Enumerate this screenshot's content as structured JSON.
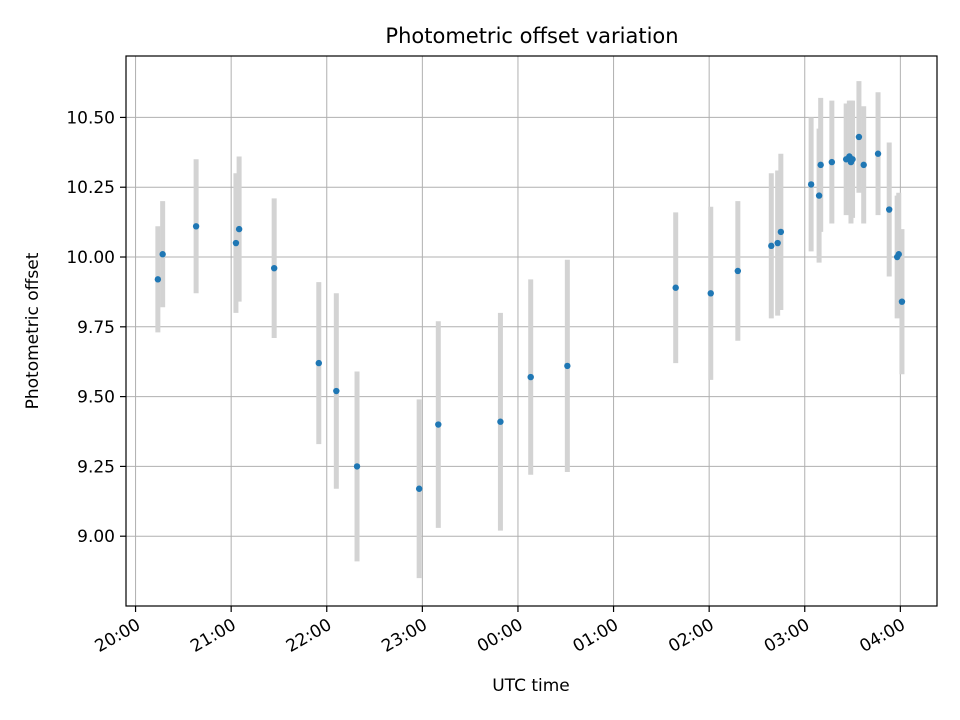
{
  "chart_data": {
    "type": "scatter",
    "title": "Photometric offset variation",
    "xlabel": "UTC time",
    "ylabel": "Photometric offset",
    "x_ticks": [
      "20:00",
      "21:00",
      "22:00",
      "23:00",
      "00:00",
      "01:00",
      "02:00",
      "03:00",
      "04:00"
    ],
    "y_ticks": [
      "9.00",
      "9.25",
      "9.50",
      "9.75",
      "10.00",
      "10.25",
      "10.50"
    ],
    "xlim": [
      "19:54",
      "04:23"
    ],
    "ylim": [
      8.75,
      10.72
    ],
    "grid": true,
    "colors": {
      "marker": "#1f77b4",
      "errorbar": "#d3d3d3",
      "grid": "#b0b0b0",
      "axis": "#000000"
    },
    "points": [
      {
        "x": "20:14",
        "y": 9.92,
        "err": 0.19
      },
      {
        "x": "20:17",
        "y": 10.01,
        "err": 0.19
      },
      {
        "x": "20:38",
        "y": 10.11,
        "err": 0.24
      },
      {
        "x": "21:03",
        "y": 10.05,
        "err": 0.25
      },
      {
        "x": "21:05",
        "y": 10.1,
        "err": 0.26
      },
      {
        "x": "21:27",
        "y": 9.96,
        "err": 0.25
      },
      {
        "x": "21:55",
        "y": 9.62,
        "err": 0.29
      },
      {
        "x": "22:06",
        "y": 9.52,
        "err": 0.35
      },
      {
        "x": "22:19",
        "y": 9.25,
        "err": 0.34
      },
      {
        "x": "22:58",
        "y": 9.17,
        "err": 0.32
      },
      {
        "x": "23:10",
        "y": 9.4,
        "err": 0.37
      },
      {
        "x": "23:49",
        "y": 9.41,
        "err": 0.39
      },
      {
        "x": "00:08",
        "y": 9.57,
        "err": 0.35
      },
      {
        "x": "00:31",
        "y": 9.61,
        "err": 0.38
      },
      {
        "x": "01:39",
        "y": 9.89,
        "err": 0.27
      },
      {
        "x": "02:01",
        "y": 9.87,
        "err": 0.31
      },
      {
        "x": "02:18",
        "y": 9.95,
        "err": 0.25
      },
      {
        "x": "02:39",
        "y": 10.04,
        "err": 0.26
      },
      {
        "x": "02:43",
        "y": 10.05,
        "err": 0.26
      },
      {
        "x": "02:45",
        "y": 10.09,
        "err": 0.28
      },
      {
        "x": "03:04",
        "y": 10.26,
        "err": 0.24
      },
      {
        "x": "03:09",
        "y": 10.22,
        "err": 0.24
      },
      {
        "x": "03:10",
        "y": 10.33,
        "err": 0.24
      },
      {
        "x": "03:17",
        "y": 10.34,
        "err": 0.22
      },
      {
        "x": "03:26",
        "y": 10.35,
        "err": 0.2
      },
      {
        "x": "03:28",
        "y": 10.36,
        "err": 0.2
      },
      {
        "x": "03:29",
        "y": 10.34,
        "err": 0.22
      },
      {
        "x": "03:30",
        "y": 10.35,
        "err": 0.21
      },
      {
        "x": "03:34",
        "y": 10.43,
        "err": 0.2
      },
      {
        "x": "03:37",
        "y": 10.33,
        "err": 0.21
      },
      {
        "x": "03:46",
        "y": 10.37,
        "err": 0.22
      },
      {
        "x": "03:53",
        "y": 10.17,
        "err": 0.24
      },
      {
        "x": "03:58",
        "y": 10.0,
        "err": 0.22
      },
      {
        "x": "03:59",
        "y": 10.01,
        "err": 0.22
      },
      {
        "x": "04:01",
        "y": 9.84,
        "err": 0.26
      }
    ]
  }
}
